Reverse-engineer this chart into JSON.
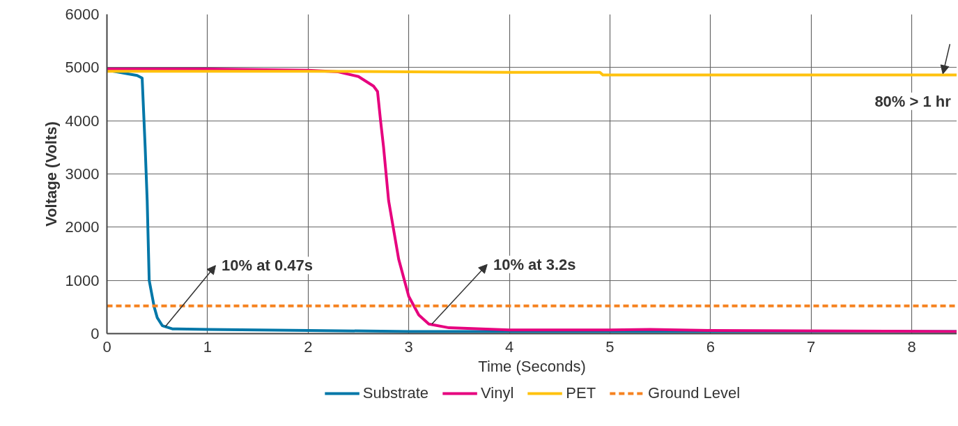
{
  "chart_data": {
    "type": "line",
    "xlabel": "Time (Seconds)",
    "ylabel": "Voltage (Volts)",
    "xlim": [
      0,
      8.45
    ],
    "ylim": [
      0,
      6000
    ],
    "xticks": [
      0,
      1,
      2,
      3,
      4,
      5,
      6,
      7,
      8
    ],
    "yticks": [
      0,
      1000,
      2000,
      3000,
      4000,
      5000,
      6000
    ],
    "grid": true,
    "legend": "bottom",
    "line_style": "solid",
    "marker": "none",
    "series": [
      {
        "name": "Substrate",
        "color": "#0077a8",
        "x": [
          0,
          0.3,
          0.35,
          0.38,
          0.4,
          0.42,
          0.45,
          0.47,
          0.5,
          0.55,
          0.65,
          1,
          2,
          3,
          4,
          6,
          8.45
        ],
        "values": [
          4950,
          4850,
          4800,
          3500,
          2500,
          1000,
          700,
          500,
          300,
          150,
          90,
          80,
          60,
          40,
          40,
          40,
          40
        ]
      },
      {
        "name": "Vinyl",
        "color": "#e6007e",
        "x": [
          0,
          1,
          2,
          2.3,
          2.5,
          2.65,
          2.69,
          2.72,
          2.75,
          2.8,
          2.9,
          3.0,
          3.1,
          3.2,
          3.4,
          4,
          5,
          5.4,
          6,
          8.45
        ],
        "values": [
          4970,
          4970,
          4950,
          4920,
          4830,
          4650,
          4550,
          4000,
          3500,
          2500,
          1400,
          700,
          350,
          180,
          110,
          70,
          70,
          80,
          60,
          40
        ]
      },
      {
        "name": "PET",
        "color": "#ffc20e",
        "x": [
          0,
          2,
          3,
          4,
          4.9,
          4.93,
          6,
          8.45
        ],
        "values": [
          4930,
          4930,
          4920,
          4910,
          4910,
          4860,
          4860,
          4860
        ]
      },
      {
        "name": "Ground Level",
        "color": "#f58220",
        "line_style": "dashed",
        "x": [
          0,
          8.45
        ],
        "values": [
          520,
          520
        ]
      }
    ],
    "annotations": [
      {
        "text": "10% at 0.47s",
        "x": 0.58,
        "y": 130
      },
      {
        "text": "10% at 3.2s",
        "x": 3.23,
        "y": 180
      },
      {
        "text": "80% > 1 hr",
        "x": 8.31,
        "y": 4880
      }
    ]
  }
}
